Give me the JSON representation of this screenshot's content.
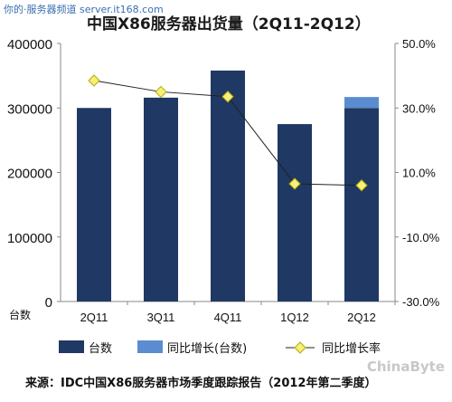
{
  "watermark_top": "你的·服务器频道 server.it168.com",
  "watermark_bottom": "ChinaByte",
  "source": "来源：IDC中国X86服务器市场季度跟踪报告（2012年第二季度）",
  "colors": {
    "bar_main": "#1f3864",
    "bar_yoy": "#5b8ccf",
    "line": "#222222",
    "marker": "#f5f07a",
    "marker_stroke": "#b5a900"
  },
  "chart_data": {
    "type": "bar",
    "title": "中国X86服务器出货量（2Q11-2Q12）",
    "ylabel": "台数",
    "categories": [
      "2Q11",
      "3Q11",
      "4Q11",
      "1Q12",
      "2Q12"
    ],
    "ylim": [
      0,
      400000
    ],
    "yticks": [
      "400000",
      "300000",
      "200000",
      "100000",
      "0"
    ],
    "y2lim": [
      -30,
      50
    ],
    "y2ticks": [
      "50.0%",
      "30.0%",
      "10.0%",
      "-10.0%",
      "-30.0%"
    ],
    "series": [
      {
        "name": "台数",
        "kind": "bar",
        "values": [
          300000,
          316000,
          358000,
          275000,
          300000
        ]
      },
      {
        "name": "同比增长(台数)",
        "kind": "bar-stack",
        "values": [
          0,
          0,
          0,
          0,
          17000
        ]
      },
      {
        "name": "同比增长率",
        "kind": "line",
        "axis": "right",
        "values": [
          38.5,
          35.0,
          33.5,
          6.5,
          6.0
        ]
      }
    ],
    "legend": [
      "台数",
      "同比增长(台数)",
      "同比增长率"
    ],
    "legend_position": "bottom",
    "grid": false
  }
}
